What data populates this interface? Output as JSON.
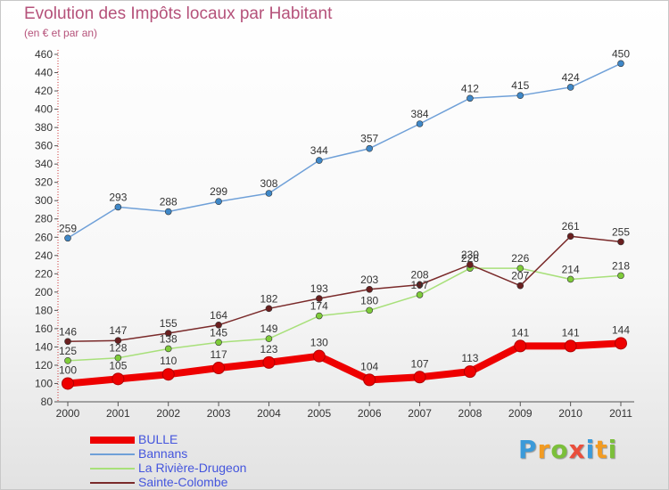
{
  "title": "Evolution des Impôts locaux par Habitant",
  "subtitle": "(en € et par an)",
  "logo": {
    "text": "Proxiti",
    "letters": [
      "P",
      "r",
      "o",
      "x",
      "i",
      "t",
      "i"
    ],
    "colors": [
      "#3b9ad9",
      "#f29b22",
      "#7bbf3a",
      "#e94e3c",
      "#3b9ad9",
      "#f29b22",
      "#7bbf3a"
    ]
  },
  "chart_data": {
    "type": "line",
    "title": "Evolution des Impôts locaux par Habitant",
    "subtitle": "(en € et par an)",
    "x": [
      2000,
      2001,
      2002,
      2003,
      2004,
      2005,
      2006,
      2007,
      2008,
      2009,
      2010,
      2011
    ],
    "ylim": [
      80,
      460
    ],
    "yticks": [
      80,
      100,
      120,
      140,
      160,
      180,
      200,
      220,
      240,
      260,
      280,
      300,
      320,
      340,
      360,
      380,
      400,
      420,
      440,
      460
    ],
    "grid": false,
    "legend_position": "bottom-left",
    "series": [
      {
        "name": "BULLE",
        "color": "#ee0000",
        "marker_color": "#ee0000",
        "thick": true,
        "values": [
          100,
          105,
          110,
          117,
          123,
          130,
          104,
          107,
          113,
          141,
          141,
          144
        ]
      },
      {
        "name": "Bannans",
        "color": "#6fa0d8",
        "marker_color": "#3f88c8",
        "thick": false,
        "values": [
          259,
          293,
          288,
          299,
          308,
          344,
          357,
          384,
          412,
          415,
          424,
          450
        ]
      },
      {
        "name": "La Rivière-Drugeon",
        "color": "#a8e07a",
        "marker_color": "#7fcc3a",
        "thick": false,
        "values": [
          125,
          128,
          138,
          145,
          149,
          174,
          180,
          197,
          226,
          226,
          214,
          218
        ]
      },
      {
        "name": "Sainte-Colombe",
        "color": "#7a2a2a",
        "marker_color": "#6a1f1f",
        "thick": false,
        "values": [
          146,
          147,
          155,
          164,
          182,
          193,
          203,
          208,
          230,
          207,
          261,
          255
        ]
      }
    ]
  }
}
